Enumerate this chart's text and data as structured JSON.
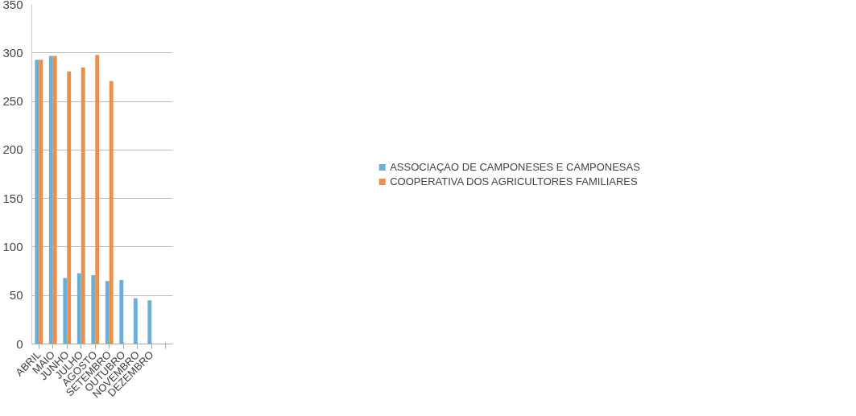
{
  "chart_data": {
    "type": "bar",
    "categories": [
      "ABRIL",
      "MAIO",
      "JUNHO",
      "JULHO",
      "AGOSTO",
      "SETEMBRO",
      "OUTUBRO",
      "NOVEMBRO",
      "DEZEMBRO",
      null
    ],
    "series": [
      {
        "name": "ASSOCIAÇAO DE CAMPONESES E CAMPONESAS",
        "color": "#6baed6",
        "values": [
          293,
          297,
          68,
          73,
          71,
          65,
          66,
          47,
          45,
          null
        ]
      },
      {
        "name": "COOPERATIVA DOS AGRICULTORES FAMILIARES",
        "color": "#e9904e",
        "values": [
          293,
          297,
          281,
          285,
          298,
          271,
          null,
          null,
          null,
          null
        ]
      }
    ],
    "ylim": [
      0,
      350
    ],
    "yticks": [
      0,
      50,
      100,
      150,
      200,
      250,
      300,
      350
    ],
    "grid": "y",
    "legend": "right"
  }
}
